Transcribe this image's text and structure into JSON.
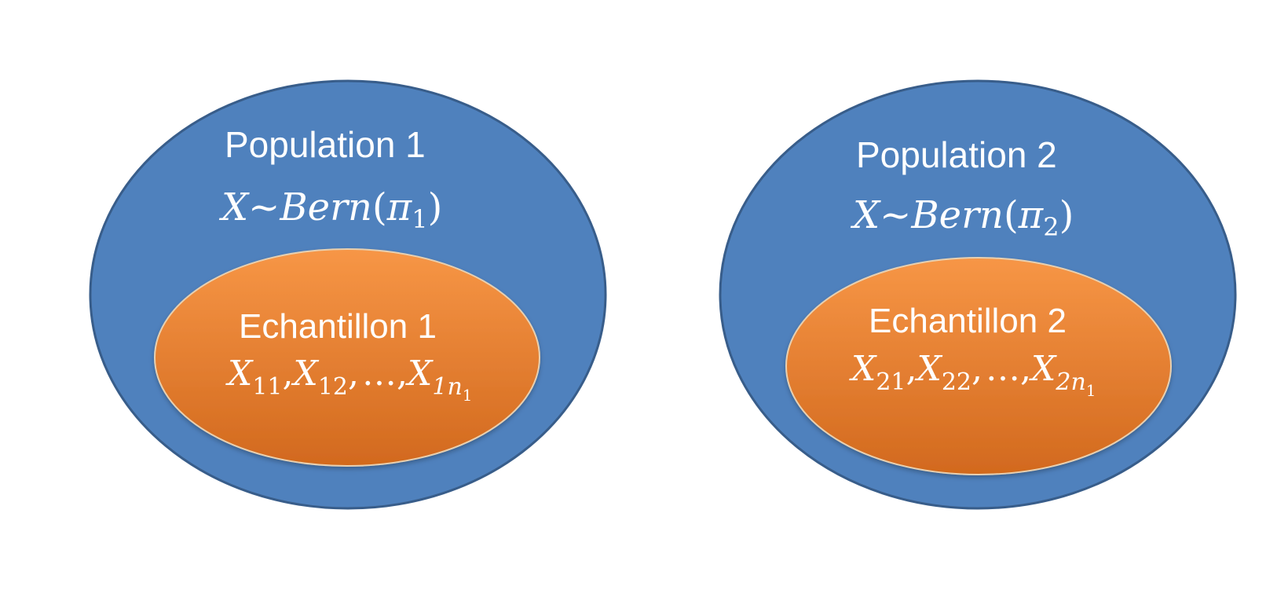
{
  "colors": {
    "population_fill": "#4f81bd",
    "population_stroke": "#385d8a",
    "sample_fill_top": "#f79646",
    "sample_fill_bottom": "#d2691e",
    "text": "#ffffff"
  },
  "population_1": {
    "title": "Population 1",
    "distribution": {
      "variable": "X",
      "tilde": "~",
      "name": "Bern",
      "open_paren": "(",
      "param": "π",
      "param_sub": "1",
      "close_paren": ")"
    }
  },
  "sample_1": {
    "title": "Echantillon 1",
    "x": "X",
    "sub_first": "11",
    "sub_second": "12",
    "comma": ",",
    "ellipsis": "…",
    "sub_last": "1n",
    "sub_last_sub": "1"
  },
  "population_2": {
    "title": "Population 2",
    "distribution": {
      "variable": "X",
      "tilde": "~",
      "name": "Bern",
      "open_paren": "(",
      "param": "π",
      "param_sub": "2",
      "close_paren": ")"
    }
  },
  "sample_2": {
    "title": "Echantillon 2",
    "x": "X",
    "sub_first": "21",
    "sub_second": "22",
    "comma": ",",
    "ellipsis": "…",
    "sub_last": "2n",
    "sub_last_sub": "1"
  }
}
